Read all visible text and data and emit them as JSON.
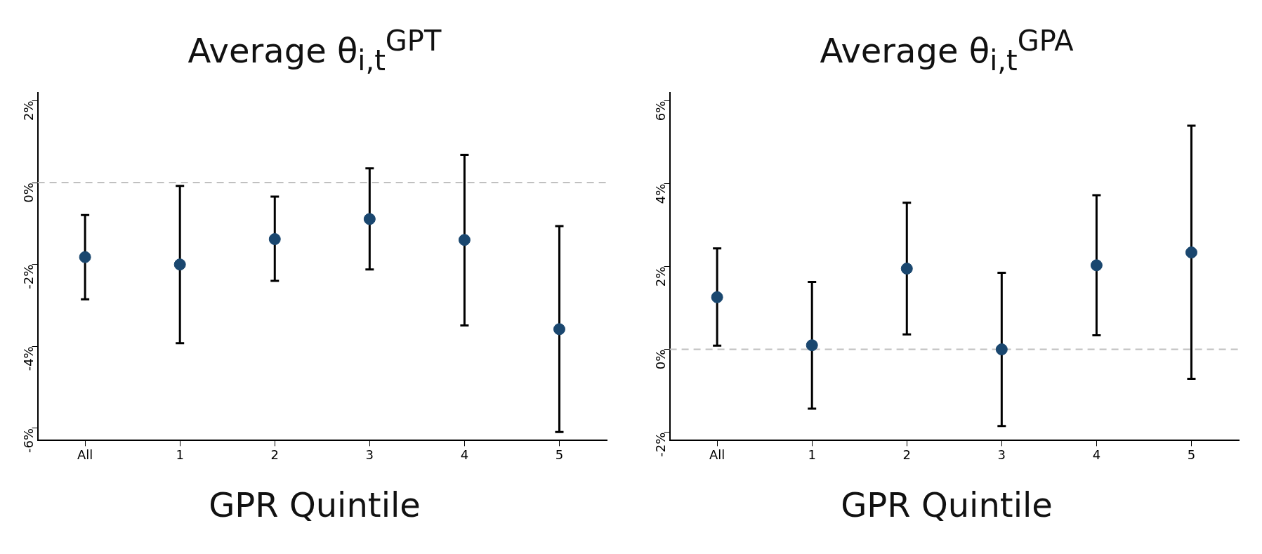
{
  "chart_data": [
    {
      "type": "scatter",
      "title": "Average θ$_{i,t}$$^{GPT}$",
      "xlabel": "GPR Quintile",
      "categories": [
        "All",
        "1",
        "2",
        "3",
        "4",
        "5"
      ],
      "series": [
        {
          "color": "#1a476f",
          "values": [
            -1.82,
            -2.0,
            -1.38,
            -0.89,
            -1.4,
            -3.58
          ],
          "errors": [
            [
              -2.85,
              -0.79
            ],
            [
              -3.92,
              -0.08
            ],
            [
              -2.4,
              -0.34
            ],
            [
              -2.12,
              0.35
            ],
            [
              -3.49,
              0.68
            ],
            [
              -6.09,
              -1.06
            ]
          ]
        }
      ],
      "ylim": [
        -6.3,
        2.2
      ],
      "yticks": [
        {
          "value": -6,
          "label": "-6%"
        },
        {
          "value": -4,
          "label": "-4%"
        },
        {
          "value": -2,
          "label": "-2%"
        },
        {
          "value": 0,
          "label": "0%"
        },
        {
          "value": 2,
          "label": "2%"
        }
      ],
      "ref_lines": [
        {
          "axis": "y",
          "value": 0,
          "color": "#c0c0c0",
          "line_style": "dashed"
        }
      ],
      "grid": false,
      "legend": false,
      "marker": "circle"
    },
    {
      "type": "scatter",
      "title": "Average θ$_{i,t}$$^{GPA}$",
      "xlabel": "GPR Quintile",
      "categories": [
        "All",
        "1",
        "2",
        "3",
        "4",
        "5"
      ],
      "series": [
        {
          "color": "#1a476f",
          "values": [
            1.26,
            0.1,
            1.95,
            0.0,
            2.03,
            2.34
          ],
          "errors": [
            [
              0.09,
              2.44
            ],
            [
              -1.43,
              1.63
            ],
            [
              0.36,
              3.54
            ],
            [
              -1.85,
              1.85
            ],
            [
              0.34,
              3.72
            ],
            [
              -0.71,
              5.4
            ]
          ]
        }
      ],
      "ylim": [
        -2.2,
        6.2
      ],
      "yticks": [
        {
          "value": -2,
          "label": "-2%"
        },
        {
          "value": 0,
          "label": "0%"
        },
        {
          "value": 2,
          "label": "2%"
        },
        {
          "value": 4,
          "label": "4%"
        },
        {
          "value": 6,
          "label": "6%"
        }
      ],
      "ref_lines": [
        {
          "axis": "y",
          "value": 0,
          "color": "#c0c0c0",
          "line_style": "dashed"
        }
      ],
      "grid": false,
      "legend": false,
      "marker": "circle"
    }
  ]
}
